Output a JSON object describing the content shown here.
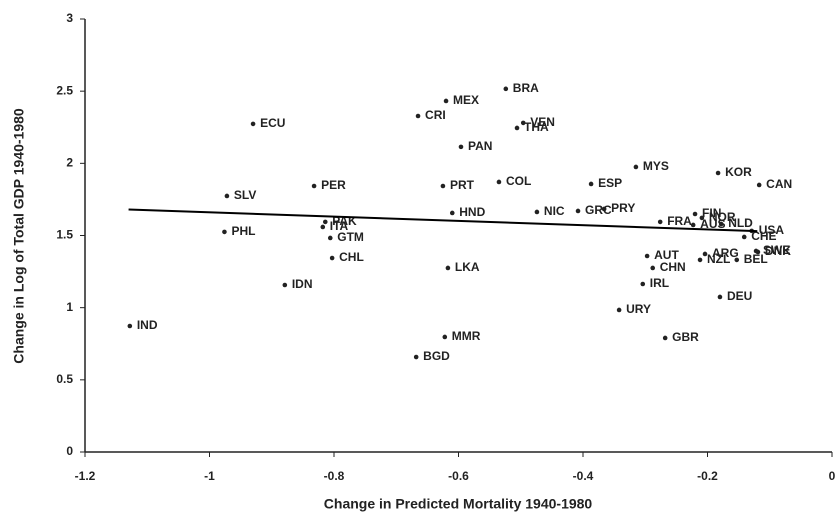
{
  "chart_data": {
    "type": "scatter",
    "xlabel": "Change in Predicted Mortality 1940-1980",
    "ylabel": "Change in Log of Total GDP 1940-1980",
    "xlim": [
      -1.2,
      0
    ],
    "ylim": [
      0,
      3
    ],
    "xticks": [
      -1.2,
      -1,
      -0.8,
      -0.6,
      -0.4,
      -0.2,
      0
    ],
    "yticks": [
      0,
      0.5,
      1,
      1.5,
      2,
      2.5,
      3
    ],
    "grid": false,
    "series": [
      {
        "color": "#222222",
        "labels": [
          "IND",
          "PHL",
          "SLV",
          "ECU",
          "IDN",
          "PER",
          "PAK",
          "ITA",
          "GTM",
          "CHL",
          "CRI",
          "MEX",
          "BRA",
          "VEN",
          "THA",
          "PAN",
          "PRT",
          "COL",
          "HND",
          "LKA",
          "NIC",
          "GRC",
          "PRY",
          "ESP",
          "MYS",
          "MMR",
          "BGD",
          "URY",
          "IRL",
          "AUT",
          "CHN",
          "GBR",
          "FRA",
          "AUS",
          "FIN",
          "NOR",
          "NLD",
          "ARG",
          "NZL",
          "BEL",
          "DEU",
          "KOR",
          "CAN",
          "USA",
          "CHE",
          "SWE",
          "DNK"
        ],
        "x": [
          -1.128,
          -0.976,
          -0.972,
          -0.93,
          -0.879,
          -0.832,
          -0.814,
          -0.818,
          -0.806,
          -0.803,
          -0.665,
          -0.62,
          -0.524,
          -0.496,
          -0.506,
          -0.596,
          -0.625,
          -0.535,
          -0.61,
          -0.617,
          -0.474,
          -0.408,
          -0.366,
          -0.387,
          -0.315,
          -0.622,
          -0.668,
          -0.342,
          -0.304,
          -0.297,
          -0.288,
          -0.268,
          -0.276,
          -0.223,
          -0.22,
          -0.209,
          -0.178,
          -0.204,
          -0.212,
          -0.153,
          -0.18,
          -0.183,
          -0.117,
          -0.129,
          -0.141,
          -0.122,
          -0.119
        ],
        "values": [
          0.873,
          1.525,
          1.774,
          2.273,
          1.157,
          1.843,
          1.594,
          1.559,
          1.483,
          1.344,
          2.328,
          2.432,
          2.516,
          2.28,
          2.245,
          2.114,
          1.843,
          1.871,
          1.656,
          1.275,
          1.663,
          1.67,
          1.684,
          1.857,
          1.975,
          0.797,
          0.658,
          0.984,
          1.164,
          1.358,
          1.275,
          0.79,
          1.594,
          1.573,
          1.649,
          1.622,
          1.58,
          1.372,
          1.331,
          1.331,
          1.074,
          1.933,
          1.85,
          1.532,
          1.49,
          1.393,
          1.386
        ]
      }
    ],
    "fit_line": {
      "x": [
        -1.13,
        -0.12
      ],
      "y": [
        1.68,
        1.53
      ]
    }
  }
}
